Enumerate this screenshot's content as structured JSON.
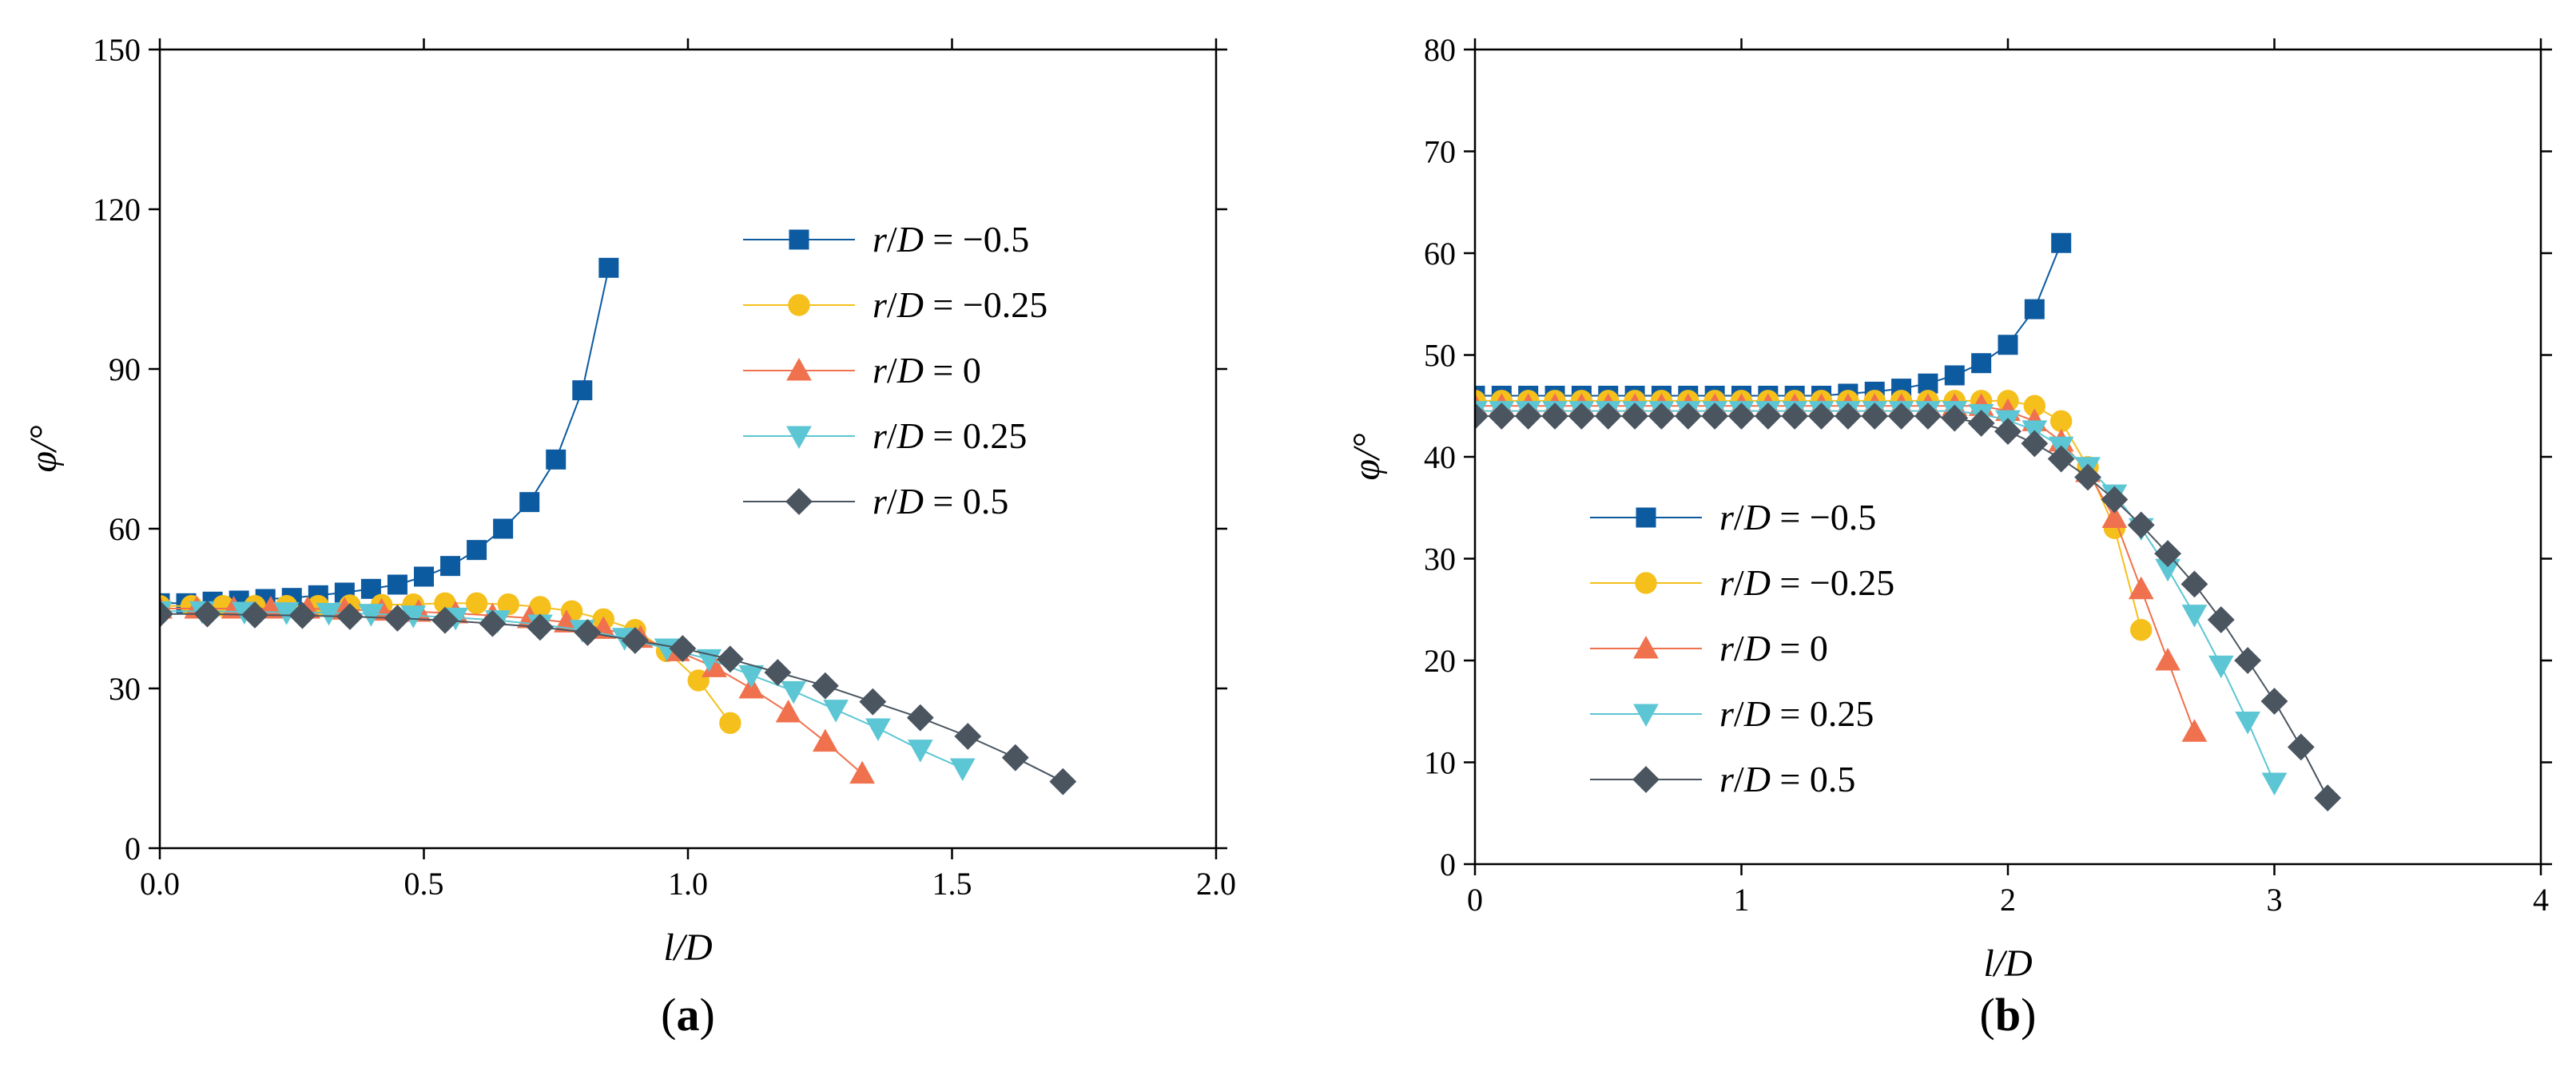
{
  "chart_data": [
    {
      "type": "line",
      "panel_label": "(a)",
      "xlabel": "l/D",
      "ylabel": "φ/°",
      "xlim": [
        0,
        2.0
      ],
      "ylim": [
        0,
        150
      ],
      "xticks": [
        0.0,
        0.5,
        1.0,
        1.5,
        2.0
      ],
      "xtick_labels": [
        "0.0",
        "0.5",
        "1.0",
        "1.5",
        "2.0"
      ],
      "yticks": [
        0,
        30,
        60,
        90,
        120,
        150
      ],
      "ytick_labels": [
        "0",
        "30",
        "60",
        "90",
        "120",
        "150"
      ],
      "grid": false,
      "legend_position": "center-right",
      "series": [
        {
          "name": "r/D = −0.5",
          "marker": "square",
          "color": "#0c5aa0",
          "x": [
            0.0,
            0.05,
            0.1,
            0.15,
            0.2,
            0.25,
            0.3,
            0.35,
            0.4,
            0.45,
            0.5,
            0.55,
            0.6,
            0.65,
            0.7,
            0.75,
            0.8,
            0.85
          ],
          "y": [
            46,
            46,
            46.3,
            46.5,
            46.8,
            47,
            47.5,
            48,
            48.7,
            49.5,
            51,
            53,
            56,
            60,
            65,
            73,
            86,
            109
          ]
        },
        {
          "name": "r/D = −0.25",
          "marker": "circle",
          "color": "#f5bf1c",
          "x": [
            0.0,
            0.06,
            0.12,
            0.18,
            0.24,
            0.3,
            0.36,
            0.42,
            0.48,
            0.54,
            0.6,
            0.66,
            0.72,
            0.78,
            0.84,
            0.9,
            0.96,
            1.02,
            1.08
          ],
          "y": [
            45.5,
            45.5,
            45.5,
            45.5,
            45.5,
            45.5,
            45.6,
            45.7,
            45.8,
            46,
            46,
            45.8,
            45.3,
            44.5,
            43,
            41,
            37,
            31.5,
            23.5
          ]
        },
        {
          "name": "r/D = 0",
          "marker": "triangle-up",
          "color": "#f0714d",
          "x": [
            0.0,
            0.07,
            0.14,
            0.21,
            0.28,
            0.35,
            0.42,
            0.49,
            0.56,
            0.63,
            0.7,
            0.77,
            0.84,
            0.91,
            0.98,
            1.05,
            1.12,
            1.19,
            1.26,
            1.33
          ],
          "y": [
            45,
            45,
            45,
            45,
            45,
            44.8,
            44.6,
            44.4,
            44.1,
            43.7,
            43.2,
            42.4,
            41.2,
            39.5,
            37,
            34,
            30,
            25.5,
            20,
            14
          ]
        },
        {
          "name": "r/D = 0.25",
          "marker": "triangle-down",
          "color": "#5cc6d4",
          "x": [
            0.0,
            0.08,
            0.16,
            0.24,
            0.32,
            0.4,
            0.48,
            0.56,
            0.64,
            0.72,
            0.8,
            0.88,
            0.96,
            1.04,
            1.12,
            1.2,
            1.28,
            1.36,
            1.44,
            1.52
          ],
          "y": [
            44.5,
            44.5,
            44.4,
            44.3,
            44.2,
            44,
            43.7,
            43.3,
            42.8,
            42,
            41,
            39.5,
            37.5,
            35.5,
            32.5,
            29.5,
            26,
            22.5,
            18.5,
            15
          ]
        },
        {
          "name": "r/D = 0.5",
          "marker": "diamond",
          "color": "#4a5560",
          "x": [
            0.0,
            0.09,
            0.18,
            0.27,
            0.36,
            0.45,
            0.54,
            0.63,
            0.72,
            0.81,
            0.9,
            0.99,
            1.08,
            1.17,
            1.26,
            1.35,
            1.44,
            1.53,
            1.62,
            1.71
          ],
          "y": [
            44,
            44,
            43.8,
            43.7,
            43.5,
            43.2,
            42.8,
            42.2,
            41.5,
            40.5,
            39,
            37.5,
            35.5,
            33,
            30.5,
            27.5,
            24.5,
            21,
            17,
            12.5
          ]
        }
      ]
    },
    {
      "type": "line",
      "panel_label": "(b)",
      "xlabel": "l/D",
      "ylabel": "φ/°",
      "xlim": [
        0,
        4
      ],
      "ylim": [
        0,
        80
      ],
      "xticks": [
        0,
        1,
        2,
        3,
        4
      ],
      "xtick_labels": [
        "0",
        "1",
        "2",
        "3",
        "4"
      ],
      "yticks": [
        0,
        10,
        20,
        30,
        40,
        50,
        60,
        70,
        80
      ],
      "ytick_labels": [
        "0",
        "10",
        "20",
        "30",
        "40",
        "50",
        "60",
        "70",
        "80"
      ],
      "grid": false,
      "legend_position": "lower-left",
      "series": [
        {
          "name": "r/D = −0.5",
          "marker": "square",
          "color": "#0c5aa0",
          "x": [
            0.0,
            0.1,
            0.2,
            0.3,
            0.4,
            0.5,
            0.6,
            0.7,
            0.8,
            0.9,
            1.0,
            1.1,
            1.2,
            1.3,
            1.4,
            1.5,
            1.6,
            1.7,
            1.8,
            1.9,
            2.0,
            2.1,
            2.2
          ],
          "y": [
            46,
            46,
            46,
            46,
            46,
            46,
            46,
            46,
            46,
            46,
            46,
            46,
            46,
            46,
            46.2,
            46.4,
            46.7,
            47.2,
            48,
            49.2,
            51,
            54.5,
            61
          ]
        },
        {
          "name": "r/D = −0.25",
          "marker": "circle",
          "color": "#f5bf1c",
          "x": [
            0.0,
            0.1,
            0.2,
            0.3,
            0.4,
            0.5,
            0.6,
            0.7,
            0.8,
            0.9,
            1.0,
            1.1,
            1.2,
            1.3,
            1.4,
            1.5,
            1.6,
            1.7,
            1.8,
            1.9,
            2.0,
            2.1,
            2.2,
            2.3,
            2.4,
            2.5
          ],
          "y": [
            45.5,
            45.5,
            45.5,
            45.5,
            45.5,
            45.5,
            45.5,
            45.5,
            45.5,
            45.5,
            45.5,
            45.5,
            45.5,
            45.5,
            45.5,
            45.5,
            45.5,
            45.5,
            45.5,
            45.5,
            45.5,
            45,
            43.5,
            39,
            33,
            23
          ]
        },
        {
          "name": "r/D = 0",
          "marker": "triangle-up",
          "color": "#f0714d",
          "x": [
            0.0,
            0.1,
            0.2,
            0.3,
            0.4,
            0.5,
            0.6,
            0.7,
            0.8,
            0.9,
            1.0,
            1.1,
            1.2,
            1.3,
            1.4,
            1.5,
            1.6,
            1.7,
            1.8,
            1.9,
            2.0,
            2.1,
            2.2,
            2.3,
            2.4,
            2.5,
            2.6,
            2.7
          ],
          "y": [
            45,
            45,
            45,
            45,
            45,
            45,
            45,
            45,
            45,
            45,
            45,
            45,
            45,
            45,
            45,
            45,
            45,
            45,
            45,
            45,
            44.5,
            43.5,
            41.5,
            38.5,
            34,
            27,
            20,
            13
          ]
        },
        {
          "name": "r/D = 0.25",
          "marker": "triangle-down",
          "color": "#5cc6d4",
          "x": [
            0.0,
            0.1,
            0.2,
            0.3,
            0.4,
            0.5,
            0.6,
            0.7,
            0.8,
            0.9,
            1.0,
            1.1,
            1.2,
            1.3,
            1.4,
            1.5,
            1.6,
            1.7,
            1.8,
            1.9,
            2.0,
            2.1,
            2.2,
            2.3,
            2.4,
            2.5,
            2.6,
            2.7,
            2.8,
            2.9,
            3.0
          ],
          "y": [
            44.5,
            44.5,
            44.5,
            44.5,
            44.5,
            44.5,
            44.5,
            44.5,
            44.5,
            44.5,
            44.5,
            44.5,
            44.5,
            44.5,
            44.5,
            44.5,
            44.5,
            44.5,
            44.5,
            44.2,
            43.6,
            42.6,
            41,
            39,
            36.3,
            33,
            29,
            24.5,
            19.5,
            14,
            8
          ]
        },
        {
          "name": "r/D = 0.5",
          "marker": "diamond",
          "color": "#4a5560",
          "x": [
            0.0,
            0.1,
            0.2,
            0.3,
            0.4,
            0.5,
            0.6,
            0.7,
            0.8,
            0.9,
            1.0,
            1.1,
            1.2,
            1.3,
            1.4,
            1.5,
            1.6,
            1.7,
            1.8,
            1.9,
            2.0,
            2.1,
            2.2,
            2.3,
            2.4,
            2.5,
            2.6,
            2.7,
            2.8,
            2.9,
            3.0,
            3.1,
            3.2
          ],
          "y": [
            44,
            44,
            44,
            44,
            44,
            44,
            44,
            44,
            44,
            44,
            44,
            44,
            44,
            44,
            44,
            44,
            44,
            44,
            43.8,
            43.3,
            42.5,
            41.3,
            39.8,
            38,
            35.8,
            33.3,
            30.5,
            27.5,
            24,
            20,
            16,
            11.5,
            6.5
          ]
        }
      ]
    }
  ]
}
